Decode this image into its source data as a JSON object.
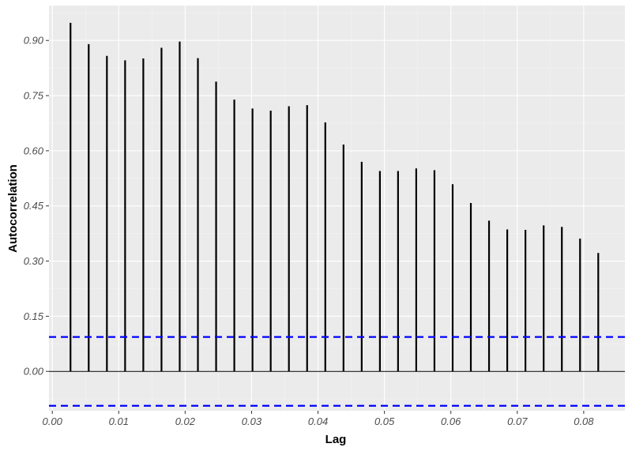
{
  "chart_data": {
    "type": "bar",
    "subtype": "acf-stem",
    "xlabel": "Lag",
    "ylabel": "Autocorrelation",
    "xlim": [
      -0.0005,
      0.0862
    ],
    "ylim": [
      -0.107,
      0.995
    ],
    "x_ticks": [
      0.0,
      0.01,
      0.02,
      0.03,
      0.04,
      0.05,
      0.06,
      0.07,
      0.08
    ],
    "x_tick_labels": [
      "0.00",
      "0.01",
      "0.02",
      "0.03",
      "0.04",
      "0.05",
      "0.06",
      "0.07",
      "0.08"
    ],
    "y_ticks": [
      0.0,
      0.15,
      0.3,
      0.45,
      0.6,
      0.75,
      0.9
    ],
    "y_tick_labels": [
      "0.00",
      "0.15",
      "0.30",
      "0.45",
      "0.60",
      "0.75",
      "0.90"
    ],
    "lags": [
      0.00274,
      0.00548,
      0.00822,
      0.01096,
      0.0137,
      0.01644,
      0.01918,
      0.02192,
      0.02466,
      0.0274,
      0.03014,
      0.03288,
      0.03562,
      0.03836,
      0.0411,
      0.04384,
      0.04658,
      0.04932,
      0.05205,
      0.05479,
      0.05753,
      0.06027,
      0.06301,
      0.06575,
      0.06849,
      0.07123,
      0.07397,
      0.07671,
      0.07945,
      0.08219
    ],
    "values": [
      0.948,
      0.89,
      0.858,
      0.846,
      0.851,
      0.88,
      0.897,
      0.852,
      0.788,
      0.739,
      0.715,
      0.709,
      0.721,
      0.724,
      0.677,
      0.617,
      0.57,
      0.545,
      0.545,
      0.552,
      0.547,
      0.509,
      0.458,
      0.41,
      0.386,
      0.385,
      0.397,
      0.393,
      0.361,
      0.322
    ],
    "confidence_bound": 0.0936,
    "grid": true,
    "colors": {
      "panel": "#ebebeb",
      "grid_major": "#ffffff",
      "grid_minor": "#f4f4f4",
      "bars": "#000000",
      "confidence": "#0000ff",
      "zero_line": "#000000"
    }
  }
}
